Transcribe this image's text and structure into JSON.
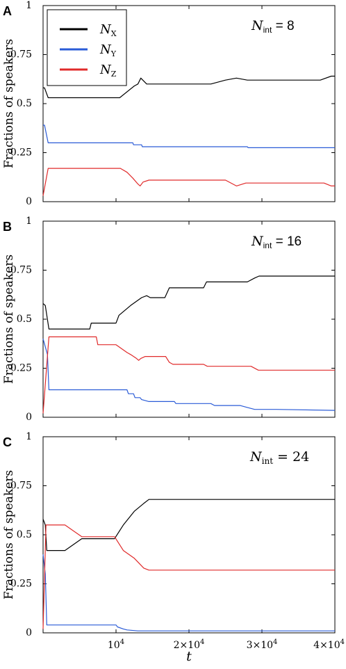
{
  "figure": {
    "x_axis_label": "t",
    "y_axis_label": "Fractions of speakers"
  },
  "legend": {
    "entries": [
      {
        "main": "N",
        "sub": "X",
        "color": "#000000"
      },
      {
        "main": "N",
        "sub": "Y",
        "color": "#2a5bd7"
      },
      {
        "main": "N",
        "sub": "Z",
        "color": "#e02a2a"
      }
    ]
  },
  "chart_data": [
    {
      "type": "line",
      "panel_label": "A",
      "annotation": {
        "main": "N",
        "sub": "int",
        "rest": " = 8"
      },
      "xlim": [
        0,
        40000
      ],
      "ylim": [
        0,
        1
      ],
      "x_ticks": [
        {
          "value": 10000,
          "label": "10",
          "sup": "4"
        },
        {
          "value": 20000,
          "label": "2×10",
          "sup": "4"
        },
        {
          "value": 30000,
          "label": "3×10",
          "sup": "4"
        },
        {
          "value": 40000,
          "label": "4×10",
          "sup": "4"
        }
      ],
      "y_ticks": [
        {
          "value": 0,
          "label": "0"
        },
        {
          "value": 0.25,
          "label": "0.25"
        },
        {
          "value": 0.5,
          "label": "0.5"
        },
        {
          "value": 0.75,
          "label": "0.75"
        },
        {
          "value": 1,
          "label": "1"
        }
      ],
      "series": [
        {
          "name": "N_X",
          "color": "#000000",
          "points": [
            [
              0,
              0.58
            ],
            [
              200,
              0.58
            ],
            [
              700,
              0.53
            ],
            [
              10500,
              0.53
            ],
            [
              12500,
              0.59
            ],
            [
              13000,
              0.6
            ],
            [
              13400,
              0.63
            ],
            [
              14200,
              0.6
            ],
            [
              19000,
              0.6
            ],
            [
              23000,
              0.6
            ],
            [
              25000,
              0.62
            ],
            [
              26500,
              0.63
            ],
            [
              28000,
              0.62
            ],
            [
              38000,
              0.62
            ],
            [
              39500,
              0.64
            ],
            [
              40000,
              0.64
            ]
          ]
        },
        {
          "name": "N_Y",
          "color": "#2a5bd7",
          "points": [
            [
              0,
              0.39
            ],
            [
              200,
              0.39
            ],
            [
              700,
              0.3
            ],
            [
              12300,
              0.3
            ],
            [
              12400,
              0.29
            ],
            [
              13500,
              0.29
            ],
            [
              13600,
              0.28
            ],
            [
              28000,
              0.28
            ],
            [
              28100,
              0.275
            ],
            [
              40000,
              0.275
            ]
          ]
        },
        {
          "name": "N_Z",
          "color": "#e02a2a",
          "points": [
            [
              0,
              0.03
            ],
            [
              700,
              0.17
            ],
            [
              10600,
              0.17
            ],
            [
              11500,
              0.15
            ],
            [
              12300,
              0.12
            ],
            [
              13000,
              0.09
            ],
            [
              13300,
              0.08
            ],
            [
              13700,
              0.1
            ],
            [
              14500,
              0.11
            ],
            [
              19000,
              0.11
            ],
            [
              25000,
              0.11
            ],
            [
              26500,
              0.08
            ],
            [
              27800,
              0.095
            ],
            [
              38500,
              0.095
            ],
            [
              39500,
              0.08
            ],
            [
              40000,
              0.08
            ]
          ]
        }
      ]
    },
    {
      "type": "line",
      "panel_label": "B",
      "annotation": {
        "main": "N",
        "sub": "int",
        "rest": " = 16"
      },
      "xlim": [
        0,
        40000
      ],
      "ylim": [
        0,
        1
      ],
      "x_ticks": [
        {
          "value": 10000,
          "label": "10",
          "sup": "4"
        },
        {
          "value": 20000,
          "label": "2×10",
          "sup": "4"
        },
        {
          "value": 30000,
          "label": "3×10",
          "sup": "4"
        },
        {
          "value": 40000,
          "label": "4×10",
          "sup": "4"
        }
      ],
      "y_ticks": [
        {
          "value": 0,
          "label": "0"
        },
        {
          "value": 0.25,
          "label": "0.25"
        },
        {
          "value": 0.5,
          "label": "0.5"
        },
        {
          "value": 0.75,
          "label": "0.75"
        },
        {
          "value": 1,
          "label": "1"
        }
      ],
      "series": [
        {
          "name": "N_X",
          "color": "#000000",
          "points": [
            [
              0,
              0.58
            ],
            [
              300,
              0.57
            ],
            [
              800,
              0.45
            ],
            [
              6400,
              0.45
            ],
            [
              6600,
              0.48
            ],
            [
              10000,
              0.48
            ],
            [
              10400,
              0.52
            ],
            [
              12000,
              0.57
            ],
            [
              13500,
              0.61
            ],
            [
              14200,
              0.62
            ],
            [
              14700,
              0.61
            ],
            [
              16700,
              0.61
            ],
            [
              17300,
              0.66
            ],
            [
              22000,
              0.66
            ],
            [
              22400,
              0.69
            ],
            [
              28000,
              0.69
            ],
            [
              29000,
              0.71
            ],
            [
              29600,
              0.72
            ],
            [
              31000,
              0.72
            ],
            [
              40000,
              0.72
            ]
          ]
        },
        {
          "name": "N_Y",
          "color": "#2a5bd7",
          "points": [
            [
              0,
              0.4
            ],
            [
              600,
              0.32
            ],
            [
              800,
              0.14
            ],
            [
              11500,
              0.14
            ],
            [
              11700,
              0.12
            ],
            [
              12400,
              0.12
            ],
            [
              12600,
              0.1
            ],
            [
              13300,
              0.1
            ],
            [
              13500,
              0.09
            ],
            [
              14500,
              0.08
            ],
            [
              18000,
              0.08
            ],
            [
              18200,
              0.07
            ],
            [
              23000,
              0.07
            ],
            [
              23500,
              0.06
            ],
            [
              27000,
              0.06
            ],
            [
              28000,
              0.05
            ],
            [
              29000,
              0.04
            ],
            [
              32000,
              0.04
            ],
            [
              40000,
              0.035
            ]
          ]
        },
        {
          "name": "N_Z",
          "color": "#e02a2a",
          "points": [
            [
              0,
              0.02
            ],
            [
              800,
              0.41
            ],
            [
              7300,
              0.41
            ],
            [
              7500,
              0.37
            ],
            [
              10000,
              0.37
            ],
            [
              11500,
              0.33
            ],
            [
              12000,
              0.32
            ],
            [
              12800,
              0.3
            ],
            [
              13100,
              0.29
            ],
            [
              13400,
              0.3
            ],
            [
              14000,
              0.31
            ],
            [
              16800,
              0.31
            ],
            [
              17300,
              0.28
            ],
            [
              17800,
              0.27
            ],
            [
              22000,
              0.27
            ],
            [
              22500,
              0.26
            ],
            [
              28500,
              0.26
            ],
            [
              29500,
              0.24
            ],
            [
              40000,
              0.24
            ]
          ]
        }
      ]
    },
    {
      "type": "line",
      "panel_label": "C",
      "annotation": {
        "main": "N",
        "sub": "int",
        "rest": " = 24"
      },
      "xlim": [
        0,
        40000
      ],
      "ylim": [
        0,
        1
      ],
      "x_ticks": [
        {
          "value": 10000,
          "label": "10",
          "sup": "4"
        },
        {
          "value": 20000,
          "label": "2×10",
          "sup": "4"
        },
        {
          "value": 30000,
          "label": "3×10",
          "sup": "4"
        },
        {
          "value": 40000,
          "label": "4×10",
          "sup": "4"
        }
      ],
      "y_ticks": [
        {
          "value": 0,
          "label": "0"
        },
        {
          "value": 0.25,
          "label": "0.25"
        },
        {
          "value": 0.5,
          "label": "0.5"
        },
        {
          "value": 0.75,
          "label": "0.75"
        },
        {
          "value": 1,
          "label": "1"
        }
      ],
      "series": [
        {
          "name": "N_X",
          "color": "#000000",
          "points": [
            [
              0,
              0.58
            ],
            [
              300,
              0.55
            ],
            [
              500,
              0.42
            ],
            [
              3000,
              0.42
            ],
            [
              5300,
              0.48
            ],
            [
              9800,
              0.48
            ],
            [
              11000,
              0.55
            ],
            [
              12500,
              0.62
            ],
            [
              13800,
              0.66
            ],
            [
              14500,
              0.68
            ],
            [
              40000,
              0.68
            ]
          ]
        },
        {
          "name": "N_Y",
          "color": "#2a5bd7",
          "points": [
            [
              0,
              0.4
            ],
            [
              300,
              0.3
            ],
            [
              500,
              0.04
            ],
            [
              10000,
              0.04
            ],
            [
              10200,
              0.03
            ],
            [
              11000,
              0.02
            ],
            [
              11500,
              0.015
            ],
            [
              13000,
              0.01
            ],
            [
              40000,
              0.01
            ]
          ]
        },
        {
          "name": "N_Z",
          "color": "#e02a2a",
          "points": [
            [
              0,
              0.02
            ],
            [
              400,
              0.55
            ],
            [
              3000,
              0.55
            ],
            [
              5300,
              0.49
            ],
            [
              9800,
              0.49
            ],
            [
              11000,
              0.42
            ],
            [
              12500,
              0.38
            ],
            [
              13800,
              0.33
            ],
            [
              14500,
              0.32
            ],
            [
              40000,
              0.32
            ]
          ]
        }
      ]
    }
  ]
}
